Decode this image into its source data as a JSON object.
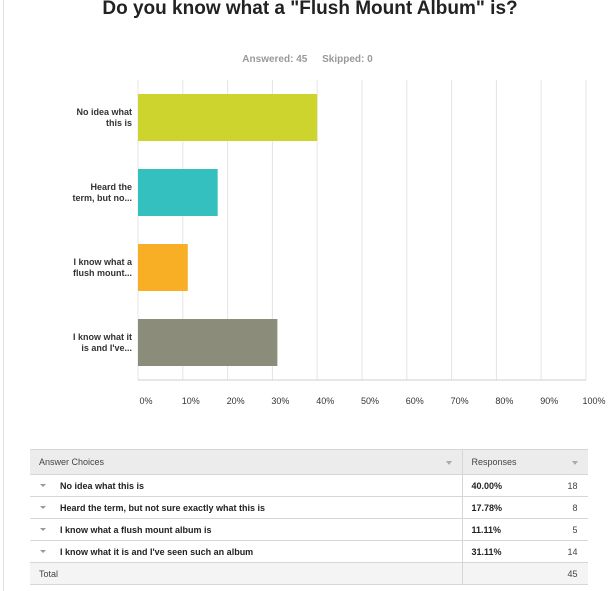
{
  "question": {
    "title": "Do you know what a \"Flush Mount Album\" is?",
    "answered": "Answered: 45",
    "skipped": "Skipped: 0"
  },
  "chart_data": {
    "type": "bar",
    "orientation": "horizontal",
    "categories": [
      "No idea what this is",
      "Heard the term, but no...",
      "I know what a flush mount...",
      "I know what it is and I've..."
    ],
    "category_lines": [
      [
        "No idea what",
        "this is"
      ],
      [
        "Heard the",
        "term, but no..."
      ],
      [
        "I know what a",
        "flush mount..."
      ],
      [
        "I know what it",
        "is and I've..."
      ]
    ],
    "values": [
      40.0,
      17.78,
      11.11,
      31.11
    ],
    "colors": [
      "#cdd42d",
      "#35c0c0",
      "#f8ae25",
      "#8c8c7a"
    ],
    "xlim": [
      0,
      100
    ],
    "x_ticks": [
      "0%",
      "10%",
      "20%",
      "30%",
      "40%",
      "50%",
      "60%",
      "70%",
      "80%",
      "90%",
      "100%"
    ],
    "grid": true,
    "title": "Do you know what a \"Flush Mount Album\" is?"
  },
  "table": {
    "header_choices": "Answer Choices",
    "header_responses": "Responses",
    "rows": [
      {
        "choice": "No idea what this is",
        "percent": "40.00%",
        "count": "18"
      },
      {
        "choice": "Heard the term, but not sure exactly what this is",
        "percent": "17.78%",
        "count": "8"
      },
      {
        "choice": "I know what a flush mount album is",
        "percent": "11.11%",
        "count": "5"
      },
      {
        "choice": "I know what it is and I've seen such an album",
        "percent": "31.11%",
        "count": "14"
      }
    ],
    "total_label": "Total",
    "total_value": "45"
  }
}
